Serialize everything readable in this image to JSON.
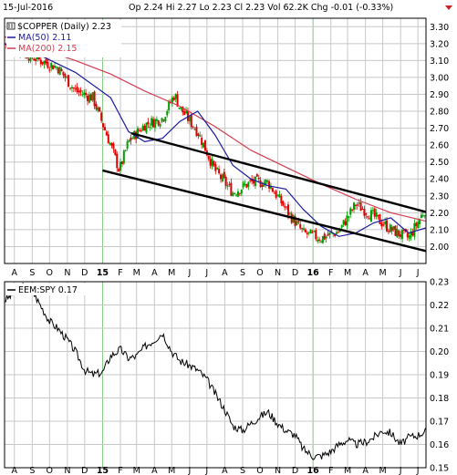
{
  "header": {
    "date": "15-Jul-2016",
    "quote": "Op 2.24  Hi 2.27  Lo 2.23  Cl 2.23  Vol 62.2K  Chg -0.01 (-0.33%)",
    "dropdown_icon": "triangle-down-icon"
  },
  "colors": {
    "grid": "#c8c8c8",
    "up_candle": "#00a000",
    "down_candle": "#e00000",
    "ma50": "#1a1aa0",
    "ma200": "#d23c50",
    "ratio_line": "#000000",
    "frame": "#000000"
  },
  "legend_top": {
    "main": "$COPPER (Daily) 2.23",
    "ma50": "MA(50) 2.11",
    "ma200": "MA(200) 2.15"
  },
  "legend_bottom": {
    "main": "EEM:SPY 0.17"
  },
  "x_axis": {
    "labels": [
      "A",
      "S",
      "O",
      "N",
      "D",
      "15",
      "F",
      "M",
      "A",
      "M",
      "J",
      "J",
      "A",
      "S",
      "O",
      "N",
      "D",
      "16",
      "F",
      "M",
      "A",
      "M",
      "J",
      "J"
    ],
    "bold_labels": [
      "15",
      "16"
    ]
  },
  "chart_data": [
    {
      "type": "candlestick",
      "title": "$COPPER (Daily)",
      "last": 2.23,
      "ylim": [
        1.9,
        3.35
      ],
      "y_ticks": [
        "2.00",
        "2.10",
        "2.20",
        "2.30",
        "2.40",
        "2.50",
        "2.60",
        "2.70",
        "2.80",
        "2.90",
        "3.00",
        "3.10",
        "3.20",
        "3.30"
      ],
      "x_range": [
        "2014-07-15",
        "2016-07-15"
      ],
      "close_monthly": {
        "dates": [
          "2014-07-15",
          "2014-08-15",
          "2014-09-15",
          "2014-10-15",
          "2014-11-15",
          "2014-12-15",
          "2015-01-15",
          "2015-01-30",
          "2015-02-15",
          "2015-03-15",
          "2015-04-15",
          "2015-05-06",
          "2015-05-15",
          "2015-06-15",
          "2015-07-15",
          "2015-08-15",
          "2015-09-15",
          "2015-10-15",
          "2015-11-15",
          "2015-12-15",
          "2016-01-15",
          "2016-02-15",
          "2016-03-15",
          "2016-04-15",
          "2016-05-15",
          "2016-06-15",
          "2016-07-15"
        ],
        "values": [
          3.2,
          3.15,
          3.1,
          3.06,
          2.92,
          2.88,
          2.6,
          2.45,
          2.62,
          2.72,
          2.76,
          2.9,
          2.82,
          2.68,
          2.45,
          2.32,
          2.38,
          2.38,
          2.22,
          2.08,
          2.05,
          2.09,
          2.25,
          2.18,
          2.1,
          2.05,
          2.23
        ]
      },
      "series": [
        {
          "name": "MA(50)",
          "last": 2.11,
          "dates": [
            "2014-07-15",
            "2014-09-15",
            "2014-11-15",
            "2015-01-15",
            "2015-02-15",
            "2015-03-15",
            "2015-04-15",
            "2015-05-15",
            "2015-06-15",
            "2015-07-15",
            "2015-08-15",
            "2015-09-15",
            "2015-10-15",
            "2015-11-15",
            "2015-12-15",
            "2016-01-15",
            "2016-02-15",
            "2016-03-15",
            "2016-04-15",
            "2016-05-15",
            "2016-06-15",
            "2016-07-15"
          ],
          "values": [
            3.2,
            3.13,
            3.03,
            2.88,
            2.68,
            2.62,
            2.64,
            2.74,
            2.8,
            2.66,
            2.48,
            2.4,
            2.36,
            2.34,
            2.22,
            2.12,
            2.06,
            2.08,
            2.14,
            2.17,
            2.08,
            2.11
          ]
        },
        {
          "name": "MA(200)",
          "last": 2.15,
          "dates": [
            "2014-07-15",
            "2014-09-15",
            "2014-11-15",
            "2015-01-15",
            "2015-03-15",
            "2015-05-15",
            "2015-07-15",
            "2015-09-15",
            "2015-11-15",
            "2016-01-15",
            "2016-03-15",
            "2016-05-15",
            "2016-07-15"
          ],
          "values": [
            3.24,
            3.17,
            3.1,
            3.02,
            2.92,
            2.83,
            2.71,
            2.57,
            2.47,
            2.37,
            2.28,
            2.2,
            2.15
          ]
        }
      ],
      "trend_lines": [
        {
          "from": [
            "2015-01-01",
            2.45
          ],
          "to": [
            "2016-07-31",
            1.96
          ]
        },
        {
          "from": [
            "2015-02-20",
            2.67
          ],
          "to": [
            "2016-07-31",
            2.19
          ]
        }
      ]
    },
    {
      "type": "line",
      "title": "EEM:SPY",
      "last": 0.17,
      "ylim": [
        0.15,
        0.23
      ],
      "y_ticks": [
        "0.15",
        "0.16",
        "0.17",
        "0.18",
        "0.19",
        "0.20",
        "0.21",
        "0.22",
        "0.23"
      ],
      "series": [
        {
          "name": "EEM:SPY",
          "dates": [
            "2014-07-15",
            "2014-08-01",
            "2014-08-15",
            "2014-09-01",
            "2014-09-15",
            "2014-10-01",
            "2014-10-15",
            "2014-11-01",
            "2014-11-15",
            "2014-12-01",
            "2014-12-15",
            "2015-01-01",
            "2015-01-15",
            "2015-02-01",
            "2015-02-15",
            "2015-03-01",
            "2015-03-15",
            "2015-04-01",
            "2015-04-15",
            "2015-05-01",
            "2015-05-15",
            "2015-06-01",
            "2015-06-15",
            "2015-07-01",
            "2015-07-15",
            "2015-08-01",
            "2015-08-15",
            "2015-09-01",
            "2015-09-15",
            "2015-10-01",
            "2015-10-15",
            "2015-11-01",
            "2015-11-15",
            "2015-12-01",
            "2015-12-15",
            "2016-01-01",
            "2016-01-15",
            "2016-02-01",
            "2016-02-15",
            "2016-03-01",
            "2016-03-15",
            "2016-04-01",
            "2016-04-15",
            "2016-05-01",
            "2016-05-15",
            "2016-06-01",
            "2016-06-15",
            "2016-07-01",
            "2016-07-15"
          ],
          "values": [
            0.222,
            0.225,
            0.228,
            0.226,
            0.22,
            0.213,
            0.21,
            0.205,
            0.2,
            0.192,
            0.19,
            0.191,
            0.198,
            0.201,
            0.197,
            0.198,
            0.202,
            0.205,
            0.208,
            0.2,
            0.196,
            0.194,
            0.192,
            0.188,
            0.182,
            0.175,
            0.168,
            0.166,
            0.169,
            0.172,
            0.174,
            0.169,
            0.166,
            0.164,
            0.158,
            0.155,
            0.155,
            0.157,
            0.16,
            0.162,
            0.16,
            0.161,
            0.163,
            0.166,
            0.165,
            0.16,
            0.163,
            0.164,
            0.166
          ]
        }
      ]
    }
  ]
}
